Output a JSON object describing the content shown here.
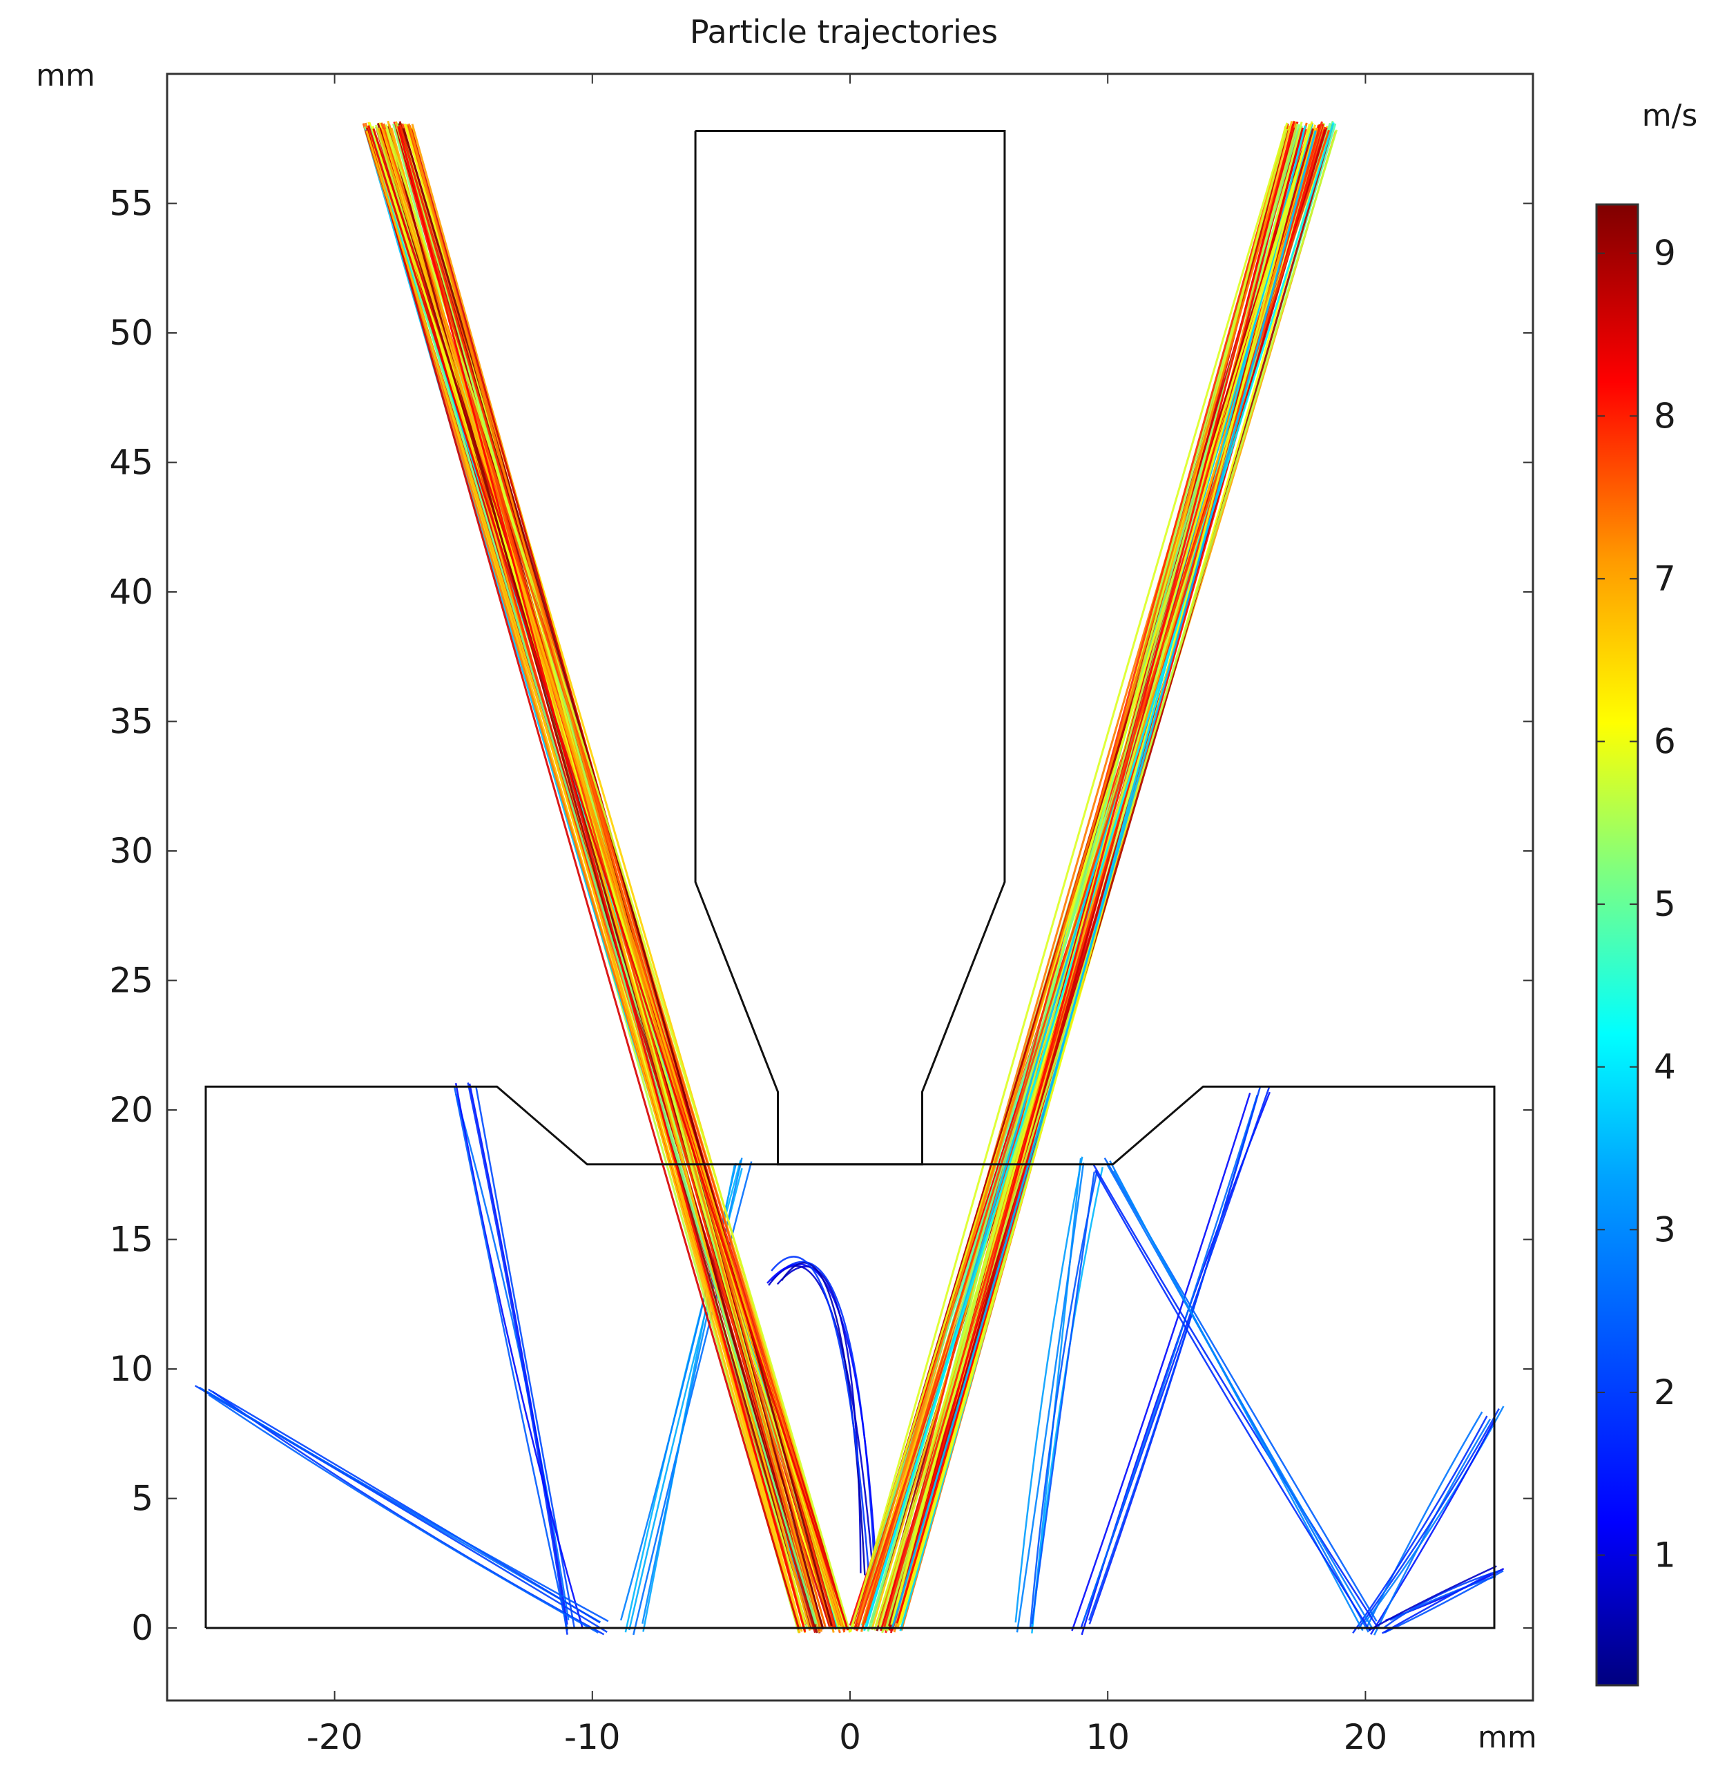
{
  "chart_data": {
    "type": "line",
    "title": "Particle trajectories",
    "xlabel": "mm",
    "ylabel": "mm",
    "xlim": [
      -26.5,
      26.5
    ],
    "ylim": [
      -2.8,
      60.0
    ],
    "xticks": [
      -20,
      -10,
      0,
      10,
      20
    ],
    "xtick_labels": [
      "-20",
      "-10",
      "0",
      "10",
      "20"
    ],
    "yticks": [
      0,
      5,
      10,
      15,
      20,
      25,
      30,
      35,
      40,
      45,
      50,
      55
    ],
    "ytick_labels": [
      "0",
      "5",
      "10",
      "15",
      "20",
      "25",
      "30",
      "35",
      "40",
      "45",
      "50",
      "55"
    ],
    "grid": false,
    "colorbar": {
      "unit": "m/s",
      "min": 0.2,
      "max": 9.3,
      "ticks": [
        1,
        2,
        3,
        4,
        5,
        6,
        7,
        8,
        9
      ],
      "tick_labels": [
        "1",
        "2",
        "3",
        "4",
        "5",
        "6",
        "7",
        "8",
        "9"
      ],
      "colormap": [
        "#00007f",
        "#0000ff",
        "#007fff",
        "#00ffff",
        "#7fff7f",
        "#ffff00",
        "#ff7f00",
        "#ff0000",
        "#7f0000"
      ]
    },
    "geometry": {
      "inlet_body": [
        [
          -6,
          57.8
        ],
        [
          6,
          57.8
        ],
        [
          6,
          28.8
        ],
        [
          2.8,
          20.7
        ],
        [
          2.8,
          17.9
        ],
        [
          -2.8,
          17.9
        ],
        [
          -2.8,
          20.7
        ],
        [
          -6,
          28.8
        ],
        [
          -6,
          57.8
        ]
      ],
      "chamber": [
        [
          -25,
          0
        ],
        [
          25,
          0
        ],
        [
          25,
          20.9
        ],
        [
          13.7,
          20.9
        ],
        [
          10.2,
          17.9
        ],
        [
          2.8,
          17.9
        ],
        [
          -2.8,
          17.9
        ],
        [
          -10.2,
          17.9
        ],
        [
          -13.7,
          20.9
        ],
        [
          -25,
          20.9
        ],
        [
          -25,
          0
        ]
      ]
    },
    "series": [
      {
        "group": "left-jet-fast",
        "speed": 7.3,
        "x": [
          -17.9,
          -1.0
        ],
        "y": [
          58.0,
          0.0
        ]
      },
      {
        "group": "right-jet-fast",
        "speed": 7.3,
        "x": [
          17.9,
          1.0
        ],
        "y": [
          58.0,
          0.0
        ]
      },
      {
        "group": "rebound-left-wide",
        "speed": 2.0,
        "x": [
          -10.5,
          -15.0
        ],
        "y": [
          0.0,
          20.8
        ]
      },
      {
        "group": "rebound-left-low",
        "speed": 2.2,
        "x": [
          -9.5,
          -25.0
        ],
        "y": [
          0.0,
          9.3
        ]
      },
      {
        "group": "rebound-left-mid",
        "speed": 3.0,
        "x": [
          -8.5,
          -4.2
        ],
        "y": [
          0.0,
          17.9
        ]
      },
      {
        "group": "rebound-center-loop",
        "speed": 1.2,
        "x": [
          -3.0,
          0.0,
          0.6
        ],
        "y": [
          13.5,
          15.3,
          2.0
        ]
      },
      {
        "group": "rebound-right-mid",
        "speed": 3.0,
        "x": [
          6.8,
          9.4
        ],
        "y": [
          0.0,
          17.9
        ]
      },
      {
        "group": "rebound-right-wide",
        "speed": 2.0,
        "x": [
          9.0,
          15.8
        ],
        "y": [
          0.0,
          20.8
        ]
      },
      {
        "group": "rebound-right-low",
        "speed": 2.2,
        "x": [
          20.0,
          24.9
        ],
        "y": [
          0.0,
          8.3
        ]
      },
      {
        "group": "rebound-right-cross",
        "speed": 2.4,
        "x": [
          9.8,
          20.0
        ],
        "y": [
          17.9,
          0.0
        ]
      },
      {
        "group": "rebound-right-short",
        "speed": 1.5,
        "x": [
          20.6,
          24.9
        ],
        "y": [
          0.0,
          2.2
        ]
      }
    ]
  }
}
